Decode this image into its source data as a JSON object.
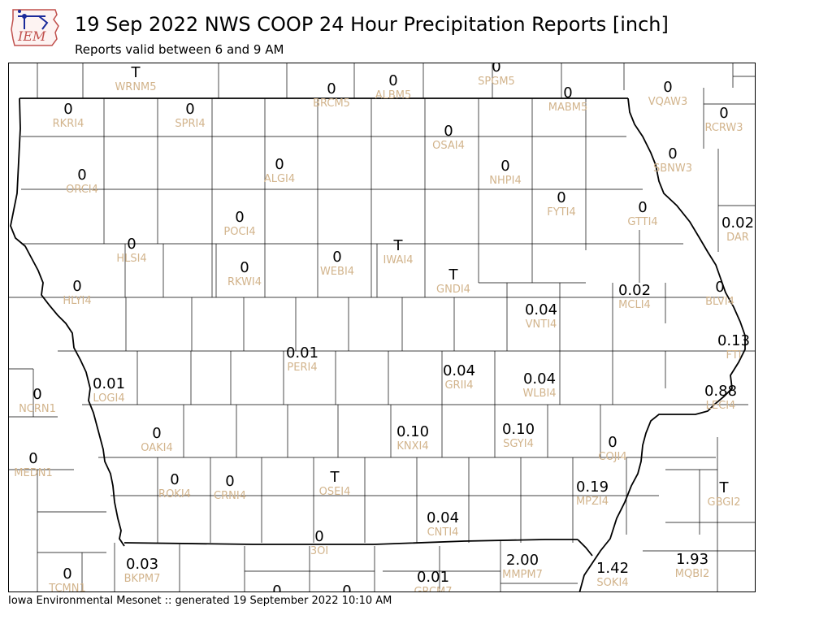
{
  "header": {
    "title": "19 Sep 2022 NWS COOP 24 Hour Precipitation Reports [inch]",
    "subtitle": "Reports valid between 6 and 9 AM"
  },
  "logo": {
    "text": "IEM"
  },
  "footer": {
    "text": "Iowa Environmental Mesonet :: generated 19 September 2022 10:10 AM"
  },
  "colors": {
    "value": "#000000",
    "station": "#d2b48c",
    "border": "#000000",
    "logo": "#c0504d"
  },
  "stations": [
    {
      "value": "T",
      "code": "WRNM5"
    },
    {
      "value": "0",
      "code": "BRCM5"
    },
    {
      "value": "0",
      "code": "ALBM5"
    },
    {
      "value": "0",
      "code": "SPGM5"
    },
    {
      "value": "0",
      "code": "MABM5"
    },
    {
      "value": "0",
      "code": "VQAW3"
    },
    {
      "value": "0",
      "code": "RCRW3"
    },
    {
      "value": "0",
      "code": "RKRI4"
    },
    {
      "value": "0",
      "code": "SPRI4"
    },
    {
      "value": "0",
      "code": "OSAI4"
    },
    {
      "value": "0",
      "code": "SBNW3"
    },
    {
      "value": "0",
      "code": "ORCI4"
    },
    {
      "value": "0",
      "code": "ALGI4"
    },
    {
      "value": "0",
      "code": "NHPI4"
    },
    {
      "value": "0",
      "code": "FYTI4"
    },
    {
      "value": "0",
      "code": "GTTI4"
    },
    {
      "value": "0.02",
      "code": "DAR"
    },
    {
      "value": "0",
      "code": "POCI4"
    },
    {
      "value": "0",
      "code": "HLSI4"
    },
    {
      "value": "T",
      "code": "IWAI4"
    },
    {
      "value": "0",
      "code": "WEBI4"
    },
    {
      "value": "0",
      "code": "RKWI4"
    },
    {
      "value": "T",
      "code": "GNDI4"
    },
    {
      "value": "0",
      "code": "HLYI4"
    },
    {
      "value": "0.04",
      "code": "VNTI4"
    },
    {
      "value": "0.02",
      "code": "MCLI4"
    },
    {
      "value": "0",
      "code": "BLVI4"
    },
    {
      "value": "0.13",
      "code": "FTI"
    },
    {
      "value": "0.01",
      "code": "PERI4"
    },
    {
      "value": "0.04",
      "code": "GRII4"
    },
    {
      "value": "0.04",
      "code": "WLBI4"
    },
    {
      "value": "0.01",
      "code": "LOGI4"
    },
    {
      "value": "0",
      "code": "NCRN1"
    },
    {
      "value": "0.88",
      "code": "LECI4"
    },
    {
      "value": "0",
      "code": "OAKI4"
    },
    {
      "value": "0.10",
      "code": "KNXI4"
    },
    {
      "value": "0.10",
      "code": "SGYI4"
    },
    {
      "value": "0",
      "code": "COJI4"
    },
    {
      "value": "0",
      "code": "MEDN1"
    },
    {
      "value": "0",
      "code": "ROKI4"
    },
    {
      "value": "0",
      "code": "CRNI4"
    },
    {
      "value": "T",
      "code": "OSEI4"
    },
    {
      "value": "0.19",
      "code": "MPZI4"
    },
    {
      "value": "T",
      "code": "GBGI2"
    },
    {
      "value": "0.04",
      "code": "CNTI4"
    },
    {
      "value": "0",
      "code": "3OI"
    },
    {
      "value": "0.03",
      "code": "BKPM7"
    },
    {
      "value": "2.00",
      "code": "MMPM7"
    },
    {
      "value": "1.42",
      "code": "SOKI4"
    },
    {
      "value": "1.93",
      "code": "MQBI2"
    },
    {
      "value": "0",
      "code": "TCMN1"
    },
    {
      "value": "0.01",
      "code": "GRCM7"
    },
    {
      "value": "0",
      "code": ""
    },
    {
      "value": "0",
      "code": ""
    }
  ]
}
